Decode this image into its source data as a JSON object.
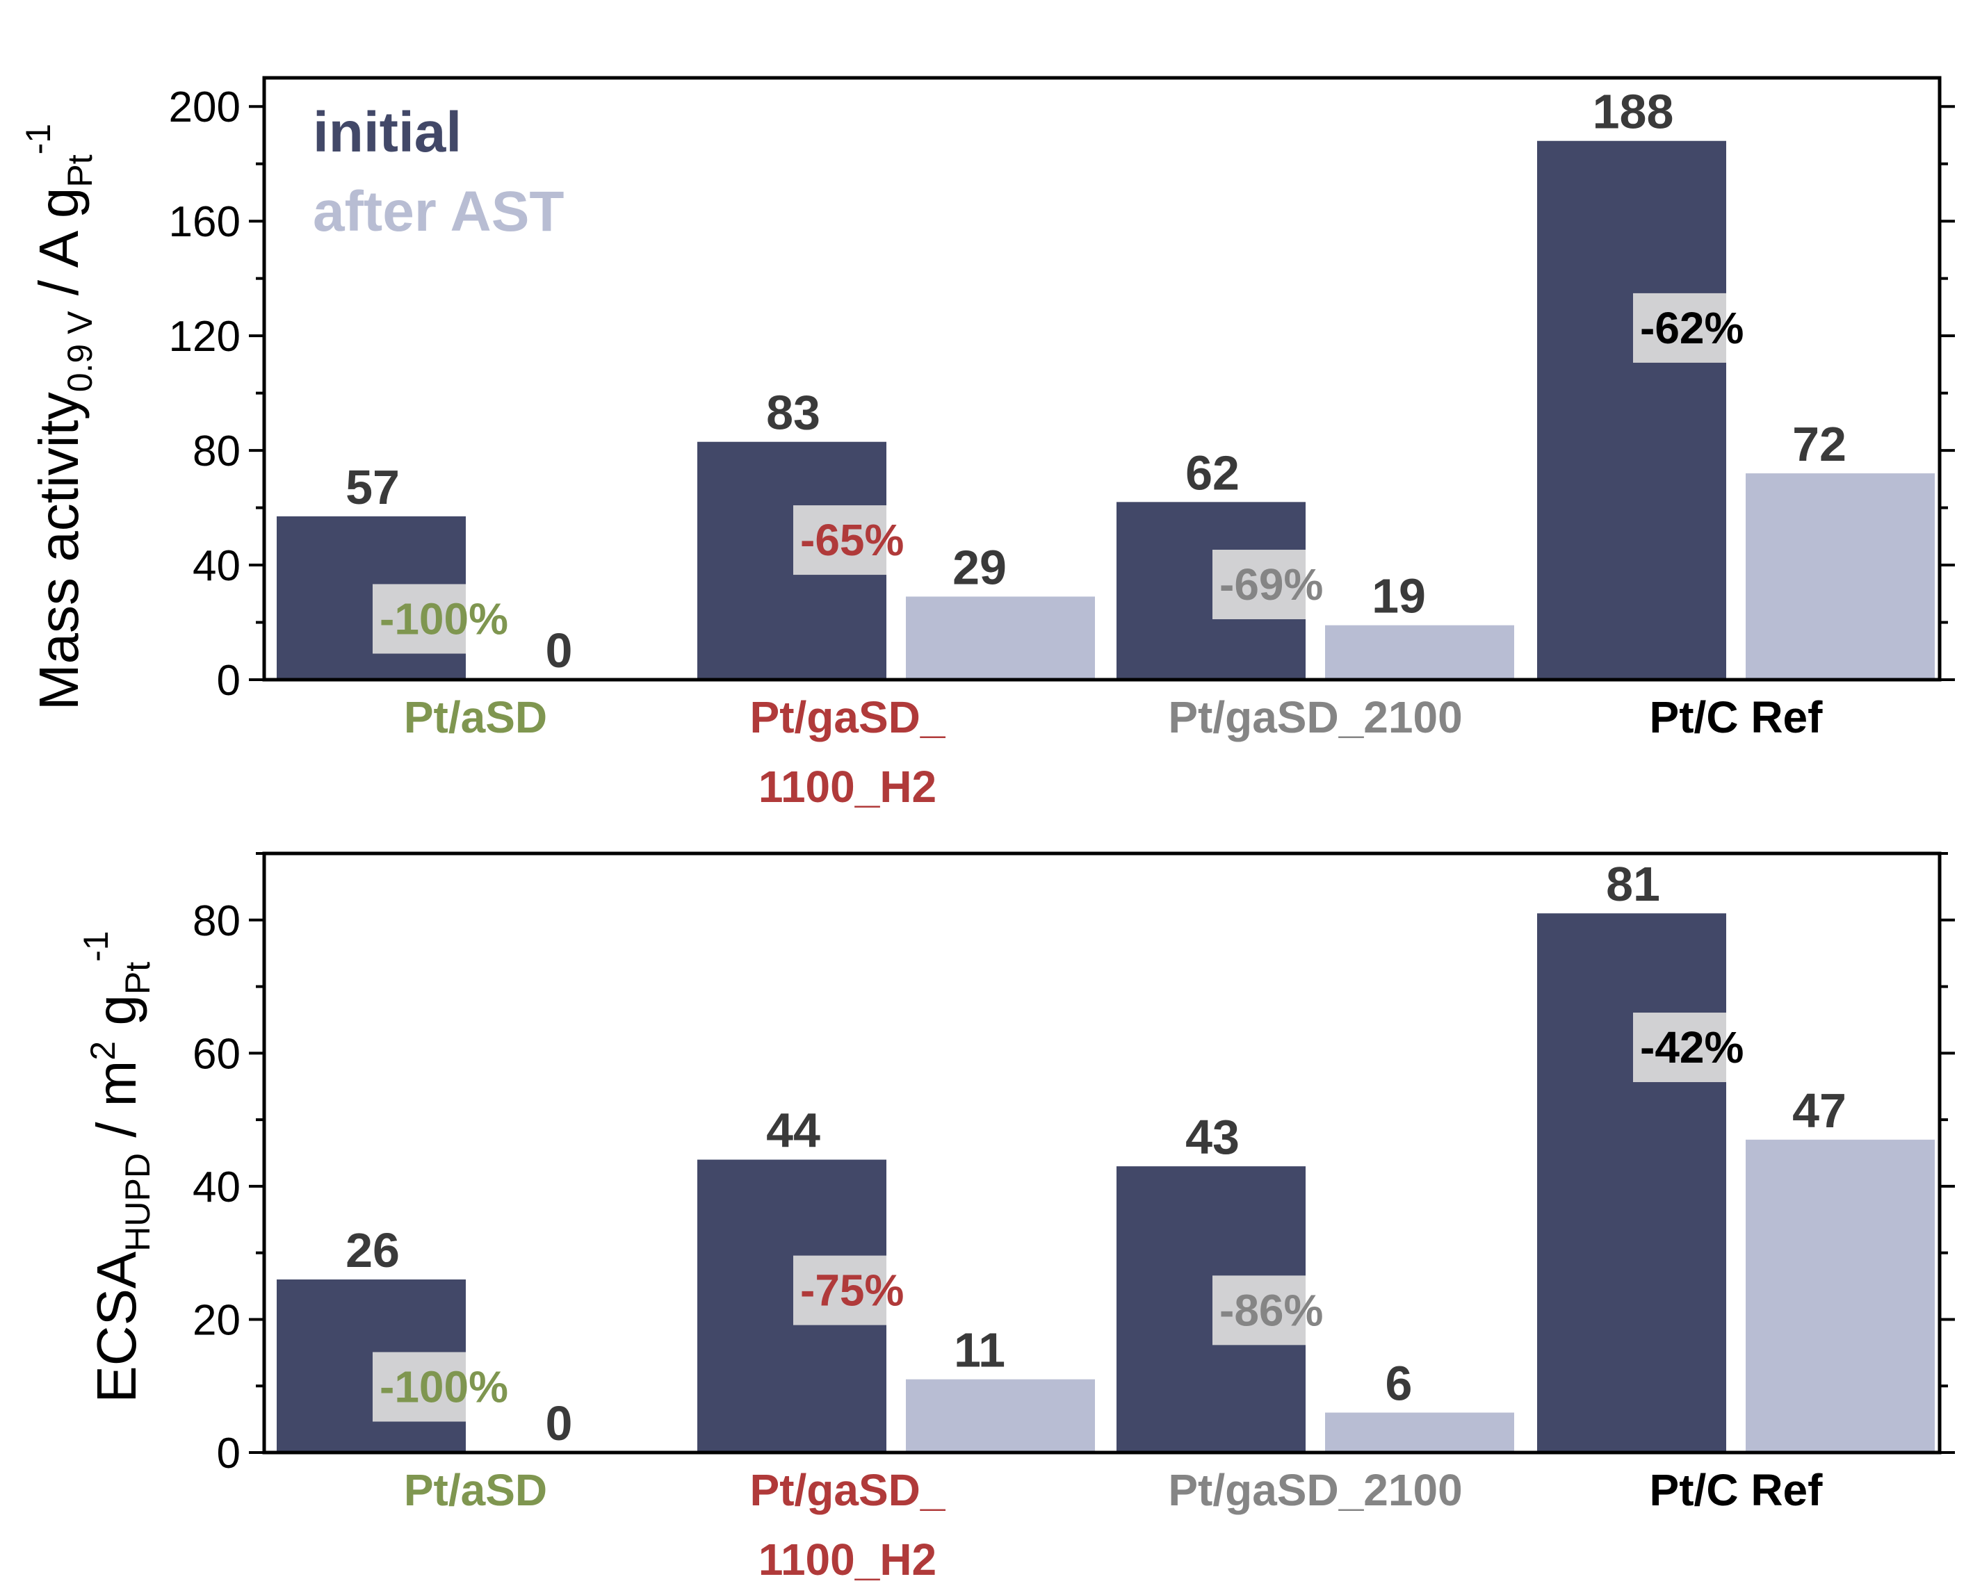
{
  "colors": {
    "initial": "#424868",
    "after": "#b8bdd3",
    "pct_box": "#d9d9d9"
  },
  "legend": {
    "initial": "initial",
    "after": "after AST"
  },
  "categories": [
    {
      "lines": [
        "Pt/aSD"
      ],
      "color": "#7f9650"
    },
    {
      "lines": [
        "Pt/gaSD_",
        "1100_H2"
      ],
      "color": "#b03a3a"
    },
    {
      "lines": [
        "Pt/gaSD_2100"
      ],
      "color": "#858585"
    },
    {
      "lines": [
        "Pt/C Ref"
      ],
      "color": "#000000"
    }
  ],
  "chart_data": [
    {
      "type": "bar",
      "ylabel": {
        "main": "Mass activity",
        "sub": "0.9 V",
        "mid": " / A g",
        "sub2": "Pt",
        "sup": "-1"
      },
      "ylim": [
        0,
        210
      ],
      "ticks": [
        0,
        40,
        80,
        120,
        160,
        200
      ],
      "tick_labels": [
        "0",
        "40",
        "80",
        "120",
        "160",
        "200"
      ],
      "series": [
        {
          "name": "initial",
          "values": [
            57,
            83,
            62,
            188
          ]
        },
        {
          "name": "after AST",
          "values": [
            0,
            29,
            19,
            72
          ]
        }
      ],
      "value_labels_initial": [
        "57",
        "83",
        "62",
        "188"
      ],
      "value_labels_after": [
        "0",
        "29",
        "19",
        "72"
      ],
      "changes": [
        "-100%",
        "-65%",
        "-69%",
        "-62%"
      ]
    },
    {
      "type": "bar",
      "ylabel": {
        "main": "ECSA",
        "sub": "HUPD",
        "mid": " / m",
        "sup0": "2",
        "mid2": " g",
        "sub2": "Pt",
        "sup": "-1"
      },
      "ylim": [
        0,
        90
      ],
      "ticks": [
        0,
        20,
        40,
        60,
        80
      ],
      "tick_labels": [
        "0",
        "20",
        "40",
        "60",
        "80"
      ],
      "series": [
        {
          "name": "initial",
          "values": [
            26,
            44,
            43,
            81
          ]
        },
        {
          "name": "after AST",
          "values": [
            0,
            11,
            6,
            47
          ]
        }
      ],
      "value_labels_initial": [
        "26",
        "44",
        "43",
        "81"
      ],
      "value_labels_after": [
        "0",
        "11",
        "6",
        "47"
      ],
      "changes": [
        "-100%",
        "-75%",
        "-86%",
        "-42%"
      ]
    }
  ]
}
